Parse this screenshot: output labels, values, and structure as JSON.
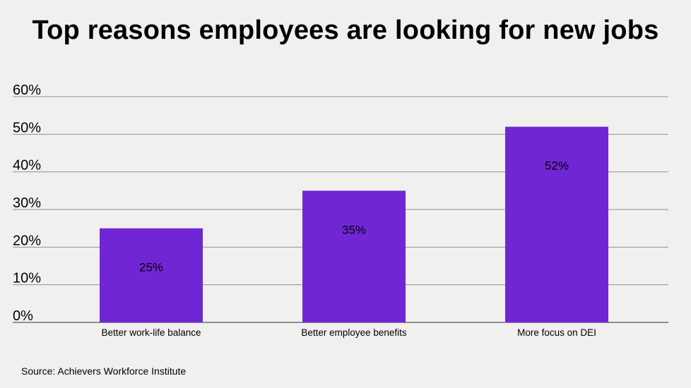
{
  "chart_data": {
    "type": "bar",
    "title": "Top reasons employees are looking for new jobs",
    "categories": [
      "Better work-life balance",
      "Better employee benefits",
      "More focus on DEI"
    ],
    "values": [
      25,
      35,
      52
    ],
    "data_labels": [
      "25%",
      "35%",
      "52%"
    ],
    "yticks": [
      "0%",
      "10%",
      "20%",
      "30%",
      "40%",
      "50%",
      "60%"
    ],
    "ylim": [
      0,
      60
    ],
    "xlabel": "",
    "ylabel": "",
    "grid": true,
    "legend": "none",
    "source": "Source: Achievers Workforce Institute"
  },
  "colors": {
    "bar": "#7126d6",
    "grid": "#8f8f8f",
    "background": "#f0f1ef"
  }
}
